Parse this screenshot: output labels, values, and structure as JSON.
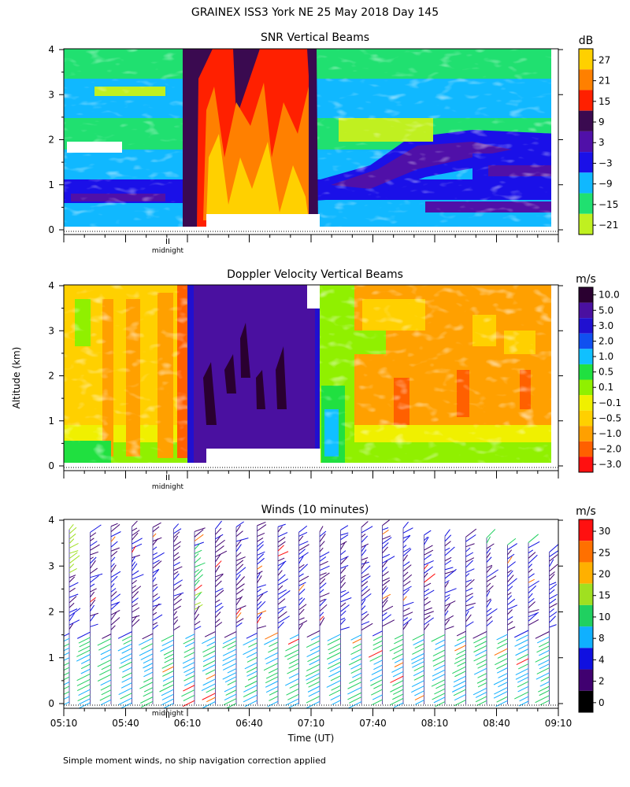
{
  "figure_title": "GRAINEX ISS3 York NE  25 May 2018 Day 145",
  "y_axis_label": "Altitude (km)",
  "footnote": "Simple moment winds, no ship navigation correction applied",
  "chart_data": [
    {
      "type": "heatmap",
      "title": "SNR Vertical Beams",
      "colorbar": {
        "unit": "dB",
        "ticks": [
          "27",
          "21",
          "15",
          "9",
          "3",
          "−3",
          "−9",
          "−15",
          "−21"
        ],
        "colors": [
          "#ffd000",
          "#ff8000",
          "#ff2000",
          "#3a0a50",
          "#5010a8",
          "#1a10e8",
          "#10b8ff",
          "#20e070",
          "#c0f020"
        ]
      },
      "y_ticks": [
        "0",
        "1",
        "2",
        "3",
        "4"
      ],
      "ylim": [
        0,
        4
      ],
      "x_marker": "midnight"
    },
    {
      "type": "heatmap",
      "title": "Doppler Velocity Vertical Beams",
      "colorbar": {
        "unit": "m/s",
        "ticks": [
          "10.0",
          "5.0",
          "3.0",
          "2.0",
          "1.0",
          "0.5",
          "0.1",
          "−0.1",
          "−0.5",
          "−1.0",
          "−2.0",
          "−3.0"
        ],
        "colors": [
          "#2a0030",
          "#4a10a0",
          "#2010d0",
          "#1050f0",
          "#10c0ff",
          "#20e040",
          "#90f000",
          "#f0f000",
          "#ffd000",
          "#ffa000",
          "#ff6000",
          "#ff1010"
        ]
      },
      "y_ticks": [
        "0",
        "1",
        "2",
        "3",
        "4"
      ],
      "ylim": [
        0,
        4
      ],
      "x_marker": "midnight"
    },
    {
      "type": "scatter",
      "title": "Winds (10 minutes)",
      "colorbar": {
        "unit": "m/s",
        "ticks": [
          "30",
          "25",
          "20",
          "15",
          "10",
          "8",
          "4",
          "2",
          "0"
        ],
        "colors": [
          "#ff1010",
          "#ff7000",
          "#ffb000",
          "#a0e020",
          "#20d060",
          "#10b0ff",
          "#1010e0",
          "#400070",
          "#000000"
        ]
      },
      "y_ticks": [
        "0",
        "1",
        "2",
        "3",
        "4"
      ],
      "ylim": [
        0,
        4
      ],
      "x_ticks": [
        "05:10",
        "05:40",
        "06:10",
        "06:40",
        "07:10",
        "07:40",
        "08:10",
        "08:40",
        "09:10"
      ],
      "xlabel": "Time (UT)",
      "x_marker": "midnight"
    }
  ]
}
